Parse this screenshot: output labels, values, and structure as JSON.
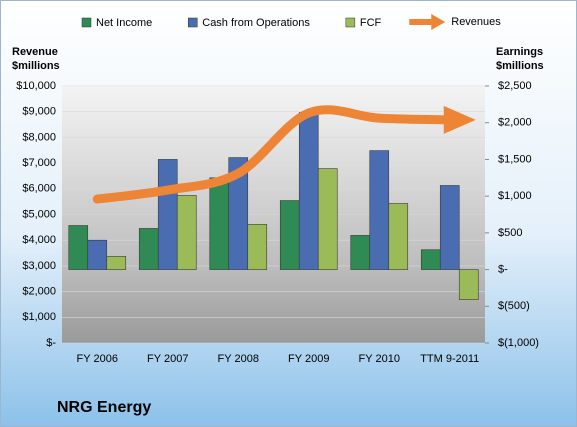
{
  "chart_data": {
    "type": "bar",
    "title": "NRG Energy",
    "categories": [
      "FY 2006",
      "FY 2007",
      "FY 2008",
      "FY 2009",
      "FY 2010",
      "TTM 9-2011"
    ],
    "ylabel": "Revenue $millions",
    "y2label": "Earnings $millions",
    "ylim": [
      0,
      10000
    ],
    "yticks": [
      {
        "value": 0,
        "label": "$-"
      },
      {
        "value": 1000,
        "label": "$1,000"
      },
      {
        "value": 2000,
        "label": "$2,000"
      },
      {
        "value": 3000,
        "label": "$3,000"
      },
      {
        "value": 4000,
        "label": "$4,000"
      },
      {
        "value": 5000,
        "label": "$5,000"
      },
      {
        "value": 6000,
        "label": "$6,000"
      },
      {
        "value": 7000,
        "label": "$7,000"
      },
      {
        "value": 8000,
        "label": "$8,000"
      },
      {
        "value": 9000,
        "label": "$9,000"
      },
      {
        "value": 10000,
        "label": "$10,000"
      }
    ],
    "y2lim": [
      -1000,
      2500
    ],
    "y2ticks": [
      {
        "value": -1000,
        "label": "$(1,000)"
      },
      {
        "value": -500,
        "label": "$(500)"
      },
      {
        "value": 0,
        "label": "$-"
      },
      {
        "value": 500,
        "label": "$500"
      },
      {
        "value": 1000,
        "label": "$1,000"
      },
      {
        "value": 1500,
        "label": "$1,500"
      },
      {
        "value": 2000,
        "label": "$2,000"
      },
      {
        "value": 2500,
        "label": "$2,500"
      }
    ],
    "grid": true,
    "series": [
      {
        "name": "Net Income",
        "color": "#2f8a54",
        "axis": "y2",
        "values": [
          600,
          560,
          1250,
          940,
          465,
          270
        ]
      },
      {
        "name": "Cash from Operations",
        "color": "#4a6cb0",
        "axis": "y2",
        "values": [
          400,
          1500,
          1525,
          2140,
          1620,
          1145
        ]
      },
      {
        "name": "FCF",
        "color": "#9bbb59",
        "axis": "y2",
        "values": [
          180,
          1010,
          615,
          1375,
          900,
          -410
        ]
      },
      {
        "name": "Revenues",
        "color": "#ee8536",
        "type": "line",
        "values": [
          5600,
          5950,
          6600,
          8950,
          8750,
          8680
        ]
      }
    ]
  }
}
